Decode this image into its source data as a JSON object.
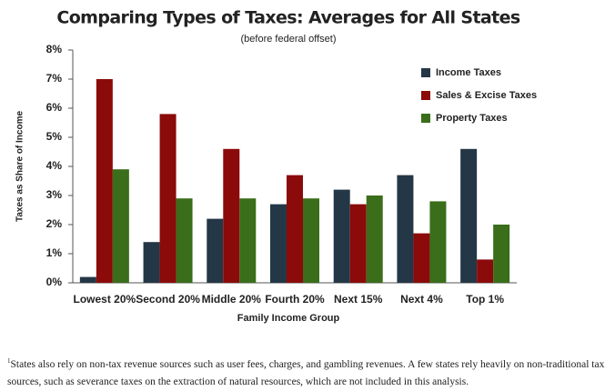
{
  "chart_data": {
    "type": "bar",
    "title": "Comparing Types of Taxes: Averages for All States",
    "subtitle": "(before federal offset)",
    "x_label": "Family Income Group",
    "y_label": "Taxes as Share of Income",
    "categories": [
      "Lowest 20%",
      "Second 20%",
      "Middle 20%",
      "Fourth 20%",
      "Next 15%",
      "Next 4%",
      "Top 1%"
    ],
    "series": [
      {
        "name": "Income Taxes",
        "color": "#243746",
        "values": [
          0.2,
          1.4,
          2.2,
          2.7,
          3.2,
          3.7,
          4.6
        ]
      },
      {
        "name": "Sales & Excise Taxes",
        "color": "#8b0a0a",
        "values": [
          7.0,
          5.8,
          4.6,
          3.7,
          2.7,
          1.7,
          0.8
        ]
      },
      {
        "name": "Property Taxes",
        "color": "#3a6e1a",
        "values": [
          3.9,
          2.9,
          2.9,
          2.9,
          3.0,
          2.8,
          2.0
        ]
      }
    ],
    "ylim": [
      0,
      8
    ],
    "yticks": [
      {
        "value": 0,
        "label": "0%"
      },
      {
        "value": 1,
        "label": "1%"
      },
      {
        "value": 2,
        "label": "2%"
      },
      {
        "value": 3,
        "label": "3%"
      },
      {
        "value": 4,
        "label": "4%"
      },
      {
        "value": 5,
        "label": "5%"
      },
      {
        "value": 6,
        "label": "6%"
      },
      {
        "value": 7,
        "label": "7%"
      },
      {
        "value": 8,
        "label": "8%"
      }
    ],
    "grid": false,
    "legend": "top-right",
    "footnote_marker": "1",
    "footnote": "States also rely on non-tax revenue sources such as user fees, charges, and gambling revenues. A few states rely heavily on non-traditional tax sources, such as severance taxes on the extraction of natural resources, which are not included in this analysis."
  }
}
